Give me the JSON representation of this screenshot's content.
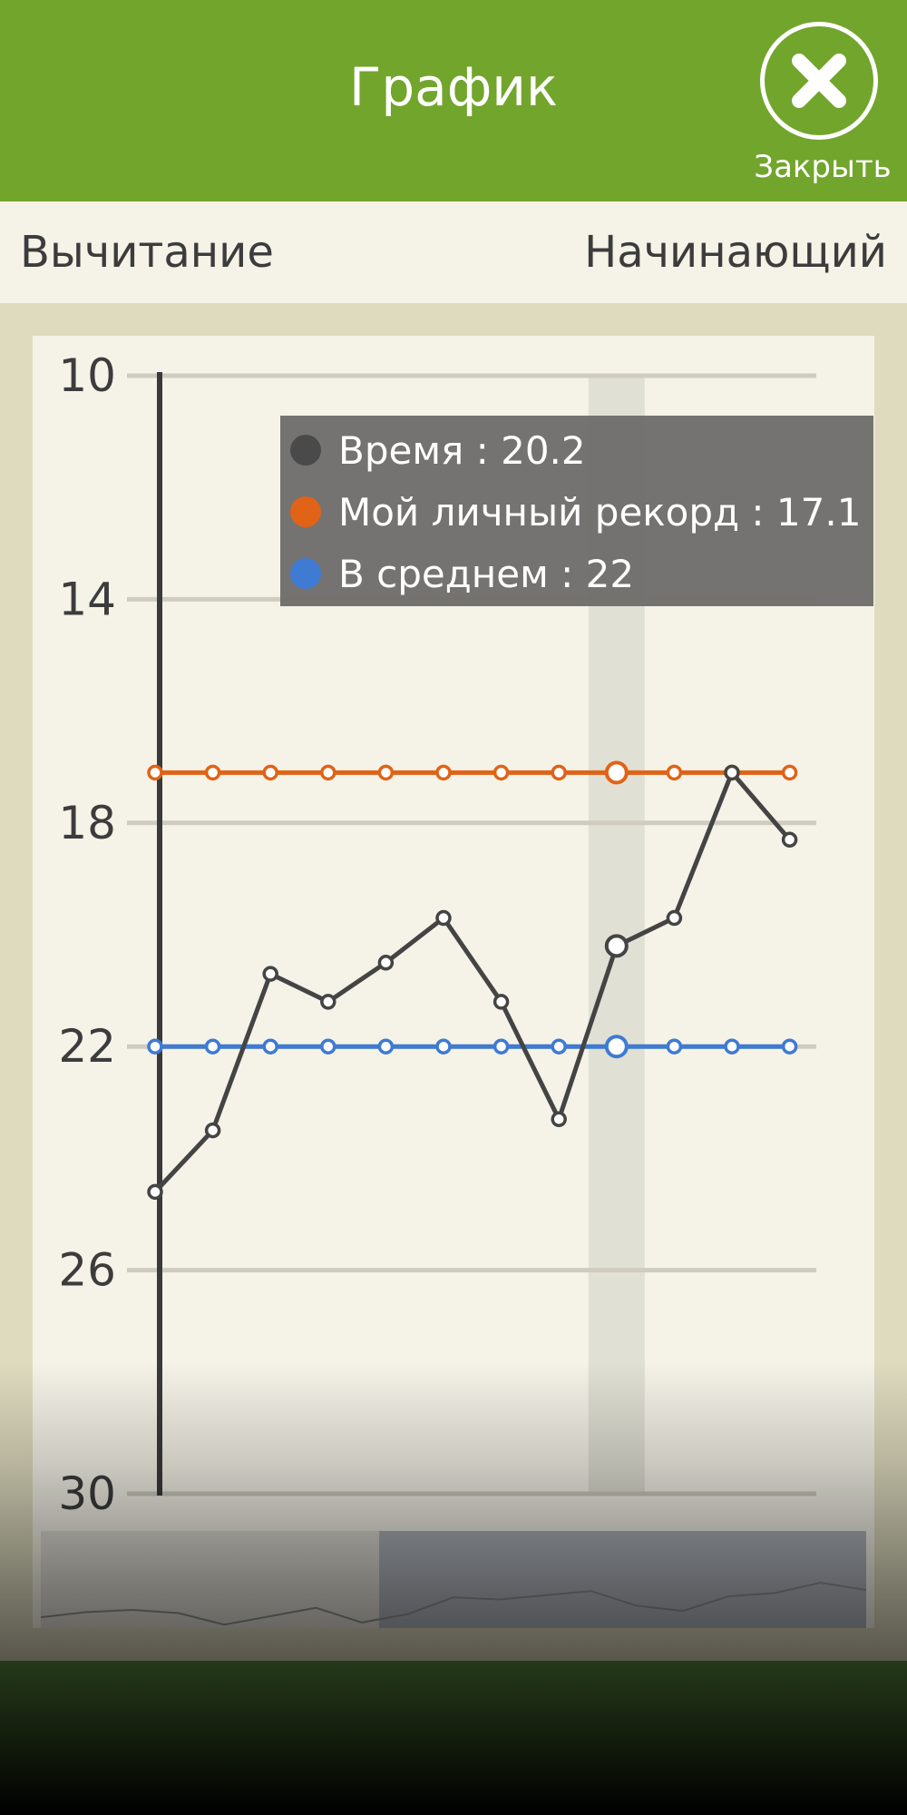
{
  "header": {
    "title": "График",
    "close_label": "Закрыть"
  },
  "subheader": {
    "operation": "Вычитание",
    "level": "Начинающий"
  },
  "colors": {
    "header_bg": "#72a52c",
    "time": "#444444",
    "record": "#e06317",
    "average": "#3f7ad3",
    "highlight": "#dcdcd0",
    "tooltip_bg": "#6f6e6c"
  },
  "icons": {
    "close": "close-icon"
  },
  "tooltip": {
    "time_label": "Время : 20.2",
    "record_label": "Мой личный рекорд : 17.1",
    "average_label": "В среднем : 22"
  },
  "chart_data": {
    "type": "line",
    "title": "",
    "xlabel": "",
    "ylabel": "",
    "ylim": [
      10,
      30
    ],
    "y_inverted": true,
    "yticks": [
      10,
      14,
      18,
      22,
      26,
      30
    ],
    "grid": true,
    "highlight_index": 8,
    "series": [
      {
        "name": "Время",
        "color": "#444444",
        "values": [
          24.6,
          23.5,
          20.7,
          21.2,
          20.5,
          19.7,
          21.2,
          23.3,
          20.2,
          19.7,
          17.1,
          18.3
        ]
      },
      {
        "name": "Мой личный рекорд",
        "color": "#e06317",
        "values": [
          17.1,
          17.1,
          17.1,
          17.1,
          17.1,
          17.1,
          17.1,
          17.1,
          17.1,
          17.1,
          17.1,
          17.1
        ]
      },
      {
        "name": "В среднем",
        "color": "#3f7ad3",
        "values": [
          22,
          22,
          22,
          22,
          22,
          22,
          22,
          22,
          22,
          22,
          22,
          22
        ]
      }
    ],
    "navigator": {
      "window_start_fraction": 0.41,
      "window_end_fraction": 1.0
    }
  }
}
